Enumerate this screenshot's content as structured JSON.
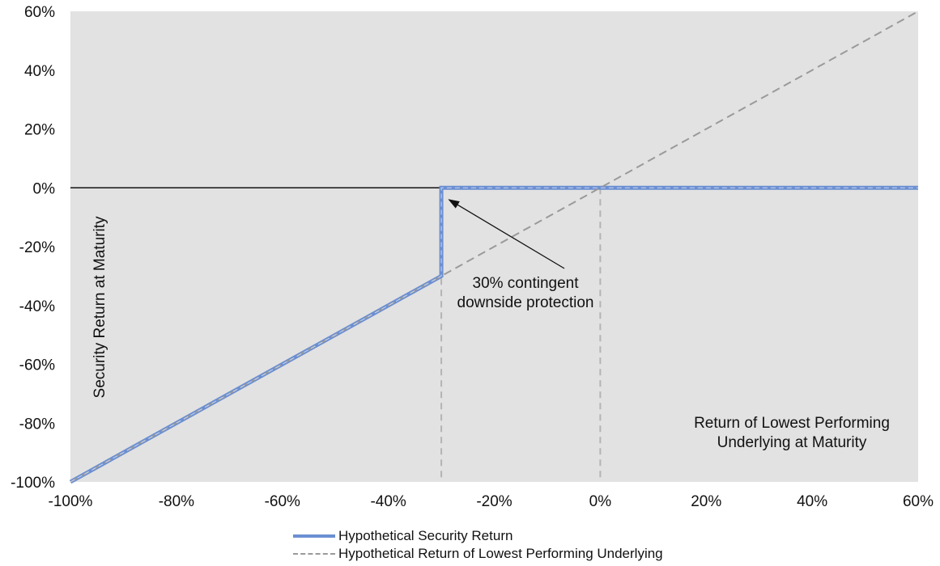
{
  "chart_data": {
    "type": "line",
    "ylabel": "Security Return at Maturity",
    "xlabel": "Return of Lowest Performing Underlying at Maturity",
    "xlabel_lines": [
      "Return of Lowest Performing",
      "Underlying at Maturity"
    ],
    "xlim": [
      -100,
      60
    ],
    "ylim": [
      -100,
      60
    ],
    "x_ticks": [
      -100,
      -80,
      -60,
      -40,
      -20,
      0,
      20,
      40,
      60
    ],
    "y_ticks": [
      -100,
      -80,
      -60,
      -40,
      -20,
      0,
      20,
      40,
      60
    ],
    "x_tick_labels": [
      "-100%",
      "-80%",
      "-60%",
      "-40%",
      "-20%",
      "0%",
      "20%",
      "40%",
      "60%"
    ],
    "y_tick_labels": [
      "-100%",
      "-80%",
      "-60%",
      "-40%",
      "-20%",
      "0%",
      "20%",
      "40%",
      "60%"
    ],
    "grid": false,
    "series": [
      {
        "name": "Hypothetical Security Return",
        "style": "solid",
        "color": "#6b8fd2",
        "x": [
          -100,
          -30,
          -30,
          60
        ],
        "y": [
          -100,
          -30,
          0,
          0
        ]
      },
      {
        "name": "Hypothetical Return of Lowest Performing Underlying",
        "style": "dashed",
        "color": "#9a9a9a",
        "x": [
          -100,
          60
        ],
        "y": [
          -100,
          60
        ]
      }
    ],
    "reference_lines": [
      {
        "x": -30,
        "style": "dashed",
        "color": "#b4b4b4"
      },
      {
        "x": 0,
        "style": "dashed",
        "color": "#b4b4b4"
      }
    ],
    "annotations": [
      {
        "lines": [
          "30% contingent",
          "downside protection"
        ],
        "arrow_to": [
          -30,
          0
        ]
      }
    ],
    "legend_position": "bottom",
    "plot_background": "#e2e2e2"
  }
}
